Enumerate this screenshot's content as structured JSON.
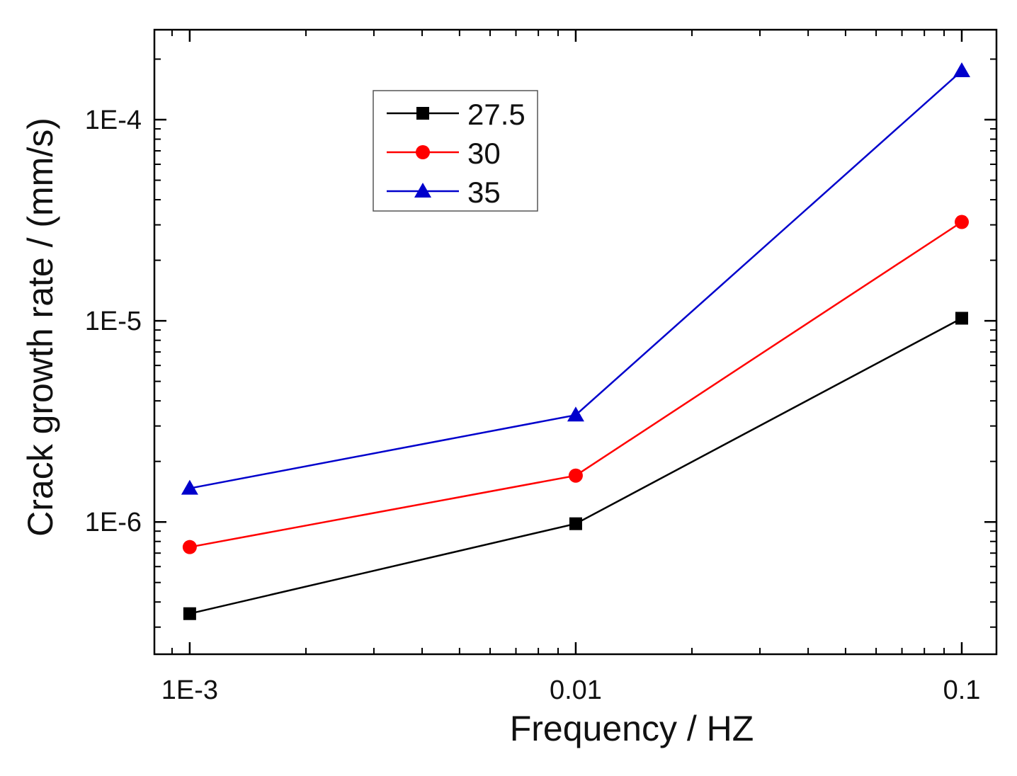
{
  "chart_data": {
    "type": "line",
    "title": "",
    "xlabel": "Frequency / HZ",
    "ylabel": "Crack growth rate / (mm/s)",
    "xscale": "log",
    "yscale": "log",
    "x": [
      0.001,
      0.01,
      0.1
    ],
    "xticks": [
      {
        "value": 0.001,
        "label": "1E-3"
      },
      {
        "value": 0.01,
        "label": "0.01"
      },
      {
        "value": 0.1,
        "label": "0.1"
      }
    ],
    "yticks": [
      {
        "value": 1e-06,
        "label": "1E-6"
      },
      {
        "value": 1e-05,
        "label": "1E-5"
      },
      {
        "value": 0.0001,
        "label": "1E-4"
      }
    ],
    "xlim": [
      0.00081,
      0.123
    ],
    "ylim": [
      2.2e-07,
      0.00028
    ],
    "legend_position": "top-left",
    "series": [
      {
        "name": "27.5",
        "color": "#000000",
        "marker": "square",
        "values": [
          3.5e-07,
          9.8e-07,
          1.03e-05
        ]
      },
      {
        "name": "30",
        "color": "#ff0000",
        "marker": "circle",
        "values": [
          7.5e-07,
          1.7e-06,
          3.1e-05
        ]
      },
      {
        "name": "35",
        "color": "#0000cc",
        "marker": "triangle",
        "values": [
          1.47e-06,
          3.4e-06,
          0.000175
        ]
      }
    ]
  }
}
